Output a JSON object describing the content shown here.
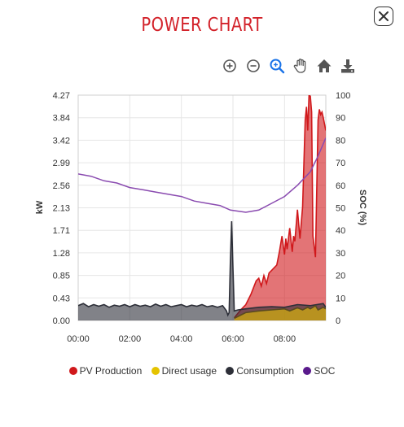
{
  "title": "POWER CHART",
  "close_icon": "close-icon",
  "toolbar": {
    "icons": [
      "zoom-in-icon",
      "zoom-out-icon",
      "zoom-select-icon",
      "pan-hand-icon",
      "home-reset-icon",
      "download-icon"
    ],
    "active_color": "#1a73e8",
    "icon_color": "#555555"
  },
  "colors": {
    "title": "#d3222a",
    "pv": "#d0181b",
    "direct": "#e5c300",
    "consumption": "#2d2f38",
    "soc": "#5a1a8c"
  },
  "chart_data": {
    "type": "area",
    "xlabel": "",
    "ylabel": "kW",
    "y2label": "SOC (%)",
    "xticks": [
      "00:00",
      "02:00",
      "04:00",
      "06:00",
      "08:00"
    ],
    "yticks": [
      "0.00",
      "0.43",
      "0.85",
      "1.28",
      "1.71",
      "2.13",
      "2.56",
      "2.99",
      "3.42",
      "3.84",
      "4.27"
    ],
    "y2ticks": [
      "0",
      "10",
      "20",
      "30",
      "40",
      "50",
      "60",
      "70",
      "80",
      "90",
      "100"
    ],
    "xlim": [
      0,
      9.6
    ],
    "ylim": [
      0,
      4.27
    ],
    "y2lim": [
      0,
      100
    ],
    "grid": true,
    "legend_position": "bottom",
    "legend": [
      "PV Production",
      "Direct usage",
      "Consumption",
      "SOC"
    ],
    "series": [
      {
        "name": "PV Production",
        "axis": "left",
        "x": [
          6.05,
          6.3,
          6.5,
          6.7,
          6.9,
          7.0,
          7.1,
          7.2,
          7.3,
          7.4,
          7.5,
          7.6,
          7.7,
          7.8,
          7.9,
          8.0,
          8.05,
          8.1,
          8.2,
          8.3,
          8.35,
          8.4,
          8.5,
          8.6,
          8.7,
          8.8,
          8.85,
          8.9,
          8.95,
          9.0,
          9.05,
          9.1,
          9.2,
          9.3,
          9.35,
          9.4,
          9.45,
          9.5,
          9.6
        ],
        "values": [
          0.05,
          0.2,
          0.3,
          0.5,
          0.75,
          0.8,
          0.65,
          0.85,
          0.7,
          0.9,
          0.95,
          1.0,
          1.05,
          1.3,
          1.6,
          1.25,
          1.55,
          1.35,
          1.75,
          1.3,
          1.6,
          1.5,
          2.1,
          1.55,
          2.15,
          3.8,
          4.05,
          3.6,
          4.27,
          4.25,
          3.95,
          1.6,
          1.2,
          3.8,
          4.0,
          3.9,
          3.95,
          3.85,
          3.6
        ]
      },
      {
        "name": "Direct usage",
        "axis": "left",
        "x": [
          6.05,
          6.5,
          7.0,
          7.5,
          8.0,
          8.2,
          8.5,
          8.7,
          8.9,
          9.0,
          9.2,
          9.3,
          9.5,
          9.6
        ],
        "values": [
          0.04,
          0.15,
          0.18,
          0.2,
          0.22,
          0.18,
          0.24,
          0.2,
          0.25,
          0.22,
          0.28,
          0.2,
          0.25,
          0.22
        ]
      },
      {
        "name": "Consumption",
        "axis": "left",
        "x": [
          0,
          0.2,
          0.4,
          0.6,
          0.8,
          1.0,
          1.2,
          1.4,
          1.6,
          1.8,
          2.0,
          2.2,
          2.4,
          2.6,
          2.8,
          3.0,
          3.2,
          3.4,
          3.6,
          3.8,
          4.0,
          4.2,
          4.4,
          4.6,
          4.8,
          5.0,
          5.2,
          5.4,
          5.6,
          5.75,
          5.8,
          5.85,
          5.9,
          5.95,
          6.0,
          6.05,
          6.2,
          6.5,
          7.0,
          7.5,
          8.0,
          8.5,
          9.0,
          9.5,
          9.6
        ],
        "values": [
          0.28,
          0.32,
          0.26,
          0.3,
          0.27,
          0.3,
          0.25,
          0.29,
          0.27,
          0.3,
          0.26,
          0.3,
          0.27,
          0.29,
          0.26,
          0.31,
          0.27,
          0.3,
          0.26,
          0.28,
          0.3,
          0.26,
          0.29,
          0.27,
          0.3,
          0.26,
          0.28,
          0.25,
          0.28,
          0.18,
          0.1,
          0.15,
          1.1,
          1.88,
          1.0,
          0.18,
          0.2,
          0.22,
          0.25,
          0.26,
          0.25,
          0.3,
          0.28,
          0.32,
          0.25
        ]
      },
      {
        "name": "SOC",
        "axis": "right",
        "x": [
          0,
          0.5,
          1.0,
          1.5,
          2.0,
          2.5,
          3.0,
          3.5,
          4.0,
          4.5,
          5.0,
          5.5,
          5.9,
          6.5,
          7.0,
          7.5,
          8.0,
          8.5,
          9.0,
          9.3,
          9.6
        ],
        "values": [
          65,
          64,
          62,
          61,
          59,
          58,
          57,
          56,
          55,
          53,
          52,
          51,
          49,
          48,
          49,
          52,
          55,
          60,
          66,
          73,
          81
        ]
      }
    ]
  }
}
